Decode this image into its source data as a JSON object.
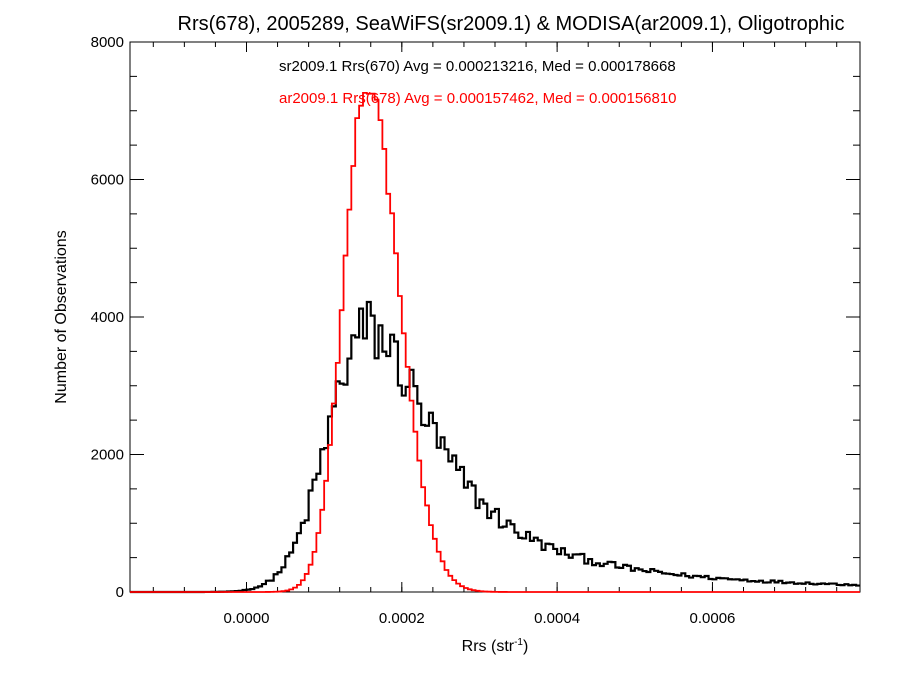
{
  "chart_data": {
    "type": "histogram",
    "title": "Rrs(678), 2005289, SeaWiFS(sr2009.1) & MODISA(ar2009.1), Oligotrophic",
    "xlabel": "Rrs (str",
    "xlabel_sup": "-1",
    "xlabel_close": ")",
    "ylabel": "Number of Observations",
    "xlim": [
      -0.00015,
      0.00079
    ],
    "ylim": [
      0,
      8000
    ],
    "x_ticks": [
      0.0,
      0.0002,
      0.0004,
      0.0006
    ],
    "x_tick_labels": [
      "0.0000",
      "0.0002",
      "0.0004",
      "0.0006"
    ],
    "y_ticks": [
      0,
      2000,
      4000,
      6000,
      8000
    ],
    "y_tick_labels": [
      "0",
      "2000",
      "4000",
      "6000",
      "8000"
    ],
    "grid": false,
    "bin_width": 5e-06,
    "series": [
      {
        "name": "sr2009.1",
        "legend_text": "sr2009.1 Rrs(670) Avg = 0.000213216, Med = 0.000178668",
        "color": "#000000",
        "stroke_width": 2.2,
        "peak_x": 0.000155,
        "peak_y": 3800,
        "left_sigma": 5e-05,
        "right_sigma": 0.000135,
        "right_shape": "heavy-tail",
        "noise": 0.13
      },
      {
        "name": "ar2009.1",
        "legend_text": "ar2009.1 Rrs(678) Avg = 0.000157462, Med = 0.000156810",
        "color": "#ff0000",
        "stroke_width": 1.8,
        "peak_x": 0.000155,
        "peak_y": 7400,
        "left_sigma": 3e-05,
        "right_sigma": 4.1e-05,
        "right_shape": "laplace",
        "noise": 0.02
      }
    ]
  }
}
